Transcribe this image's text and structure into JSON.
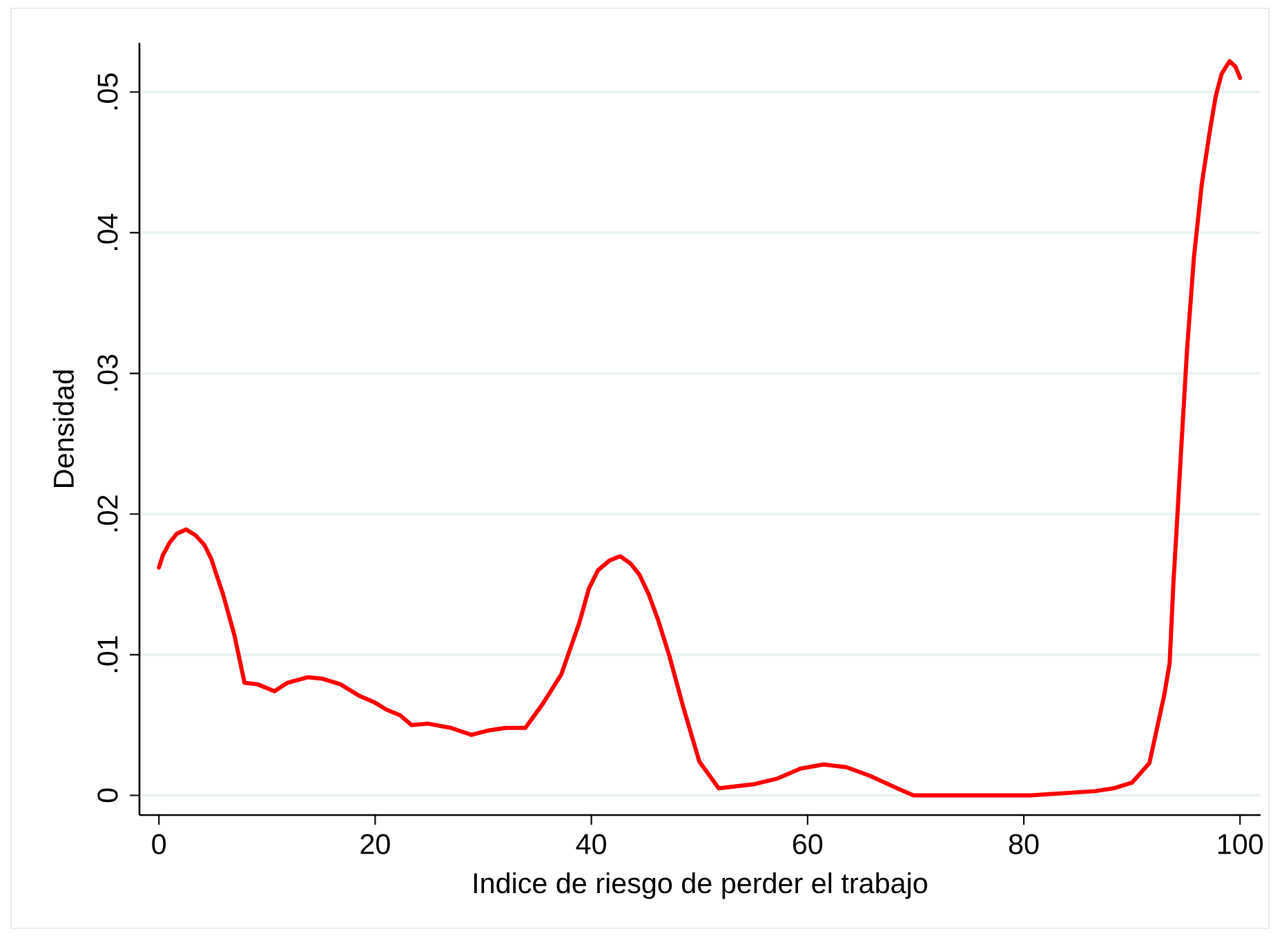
{
  "chart_data": {
    "type": "line",
    "xlabel": "Indice de riesgo de perder el trabajo",
    "ylabel": "Densidad",
    "x": [
      0,
      0.38,
      1.02,
      1.66,
      2.52,
      3.37,
      4.21,
      4.85,
      5.49,
      5.93,
      6.98,
      7.92,
      9.12,
      10.69,
      11.88,
      13.79,
      15.07,
      16.78,
      18.48,
      19.97,
      21.03,
      22.31,
      23.37,
      24.87,
      27.0,
      28.91,
      30.4,
      32.11,
      33.9,
      35.5,
      37.22,
      38.9,
      39.77,
      40.61,
      41.69,
      42.66,
      43.6,
      44.44,
      45.3,
      46.16,
      47.22,
      48.49,
      49.99,
      51.78,
      55.1,
      57.22,
      59.35,
      61.48,
      63.6,
      65.73,
      68.29,
      69.78,
      80.64,
      86.59,
      88.3,
      90.0,
      91.62,
      92.98,
      93.49,
      93.83,
      94.16,
      94.6,
      95.1,
      95.74,
      96.47,
      97.24,
      97.75,
      98.3,
      99.03,
      99.58,
      100.0
    ],
    "values": [
      0.0162,
      0.0171,
      0.018,
      0.0186,
      0.0189,
      0.0185,
      0.0178,
      0.0168,
      0.0153,
      0.0143,
      0.0114,
      0.008,
      0.0079,
      0.0074,
      0.008,
      0.0084,
      0.0083,
      0.0079,
      0.0071,
      0.0066,
      0.0061,
      0.0057,
      0.005,
      0.0051,
      0.0048,
      0.0043,
      0.0046,
      0.0048,
      0.0048,
      0.0065,
      0.0086,
      0.0123,
      0.0147,
      0.016,
      0.0167,
      0.017,
      0.0165,
      0.0157,
      0.0143,
      0.0125,
      0.0099,
      0.0063,
      0.0024,
      0.0005,
      0.0008,
      0.0012,
      0.0019,
      0.0022,
      0.002,
      0.0014,
      0.0005,
      0.0,
      0.0,
      0.0003,
      0.0005,
      0.0009,
      0.0023,
      0.0071,
      0.0094,
      0.015,
      0.0193,
      0.0252,
      0.0317,
      0.0383,
      0.0435,
      0.0474,
      0.0497,
      0.0513,
      0.0522,
      0.0518,
      0.051
    ],
    "color": "#ff0000",
    "xlim": [
      -1.8,
      101.9
    ],
    "ylim": [
      -0.0014,
      0.0535
    ],
    "xticks": [
      0,
      20,
      40,
      60,
      80,
      100
    ],
    "yticks": [
      {
        "value": 0,
        "label": "0"
      },
      {
        "value": 0.01,
        "label": ".01"
      },
      {
        "value": 0.02,
        "label": ".02"
      },
      {
        "value": 0.03,
        "label": ".03"
      },
      {
        "value": 0.04,
        "label": ".04"
      },
      {
        "value": 0.05,
        "label": ".05"
      }
    ],
    "grid": "y",
    "line_style": "solid"
  }
}
